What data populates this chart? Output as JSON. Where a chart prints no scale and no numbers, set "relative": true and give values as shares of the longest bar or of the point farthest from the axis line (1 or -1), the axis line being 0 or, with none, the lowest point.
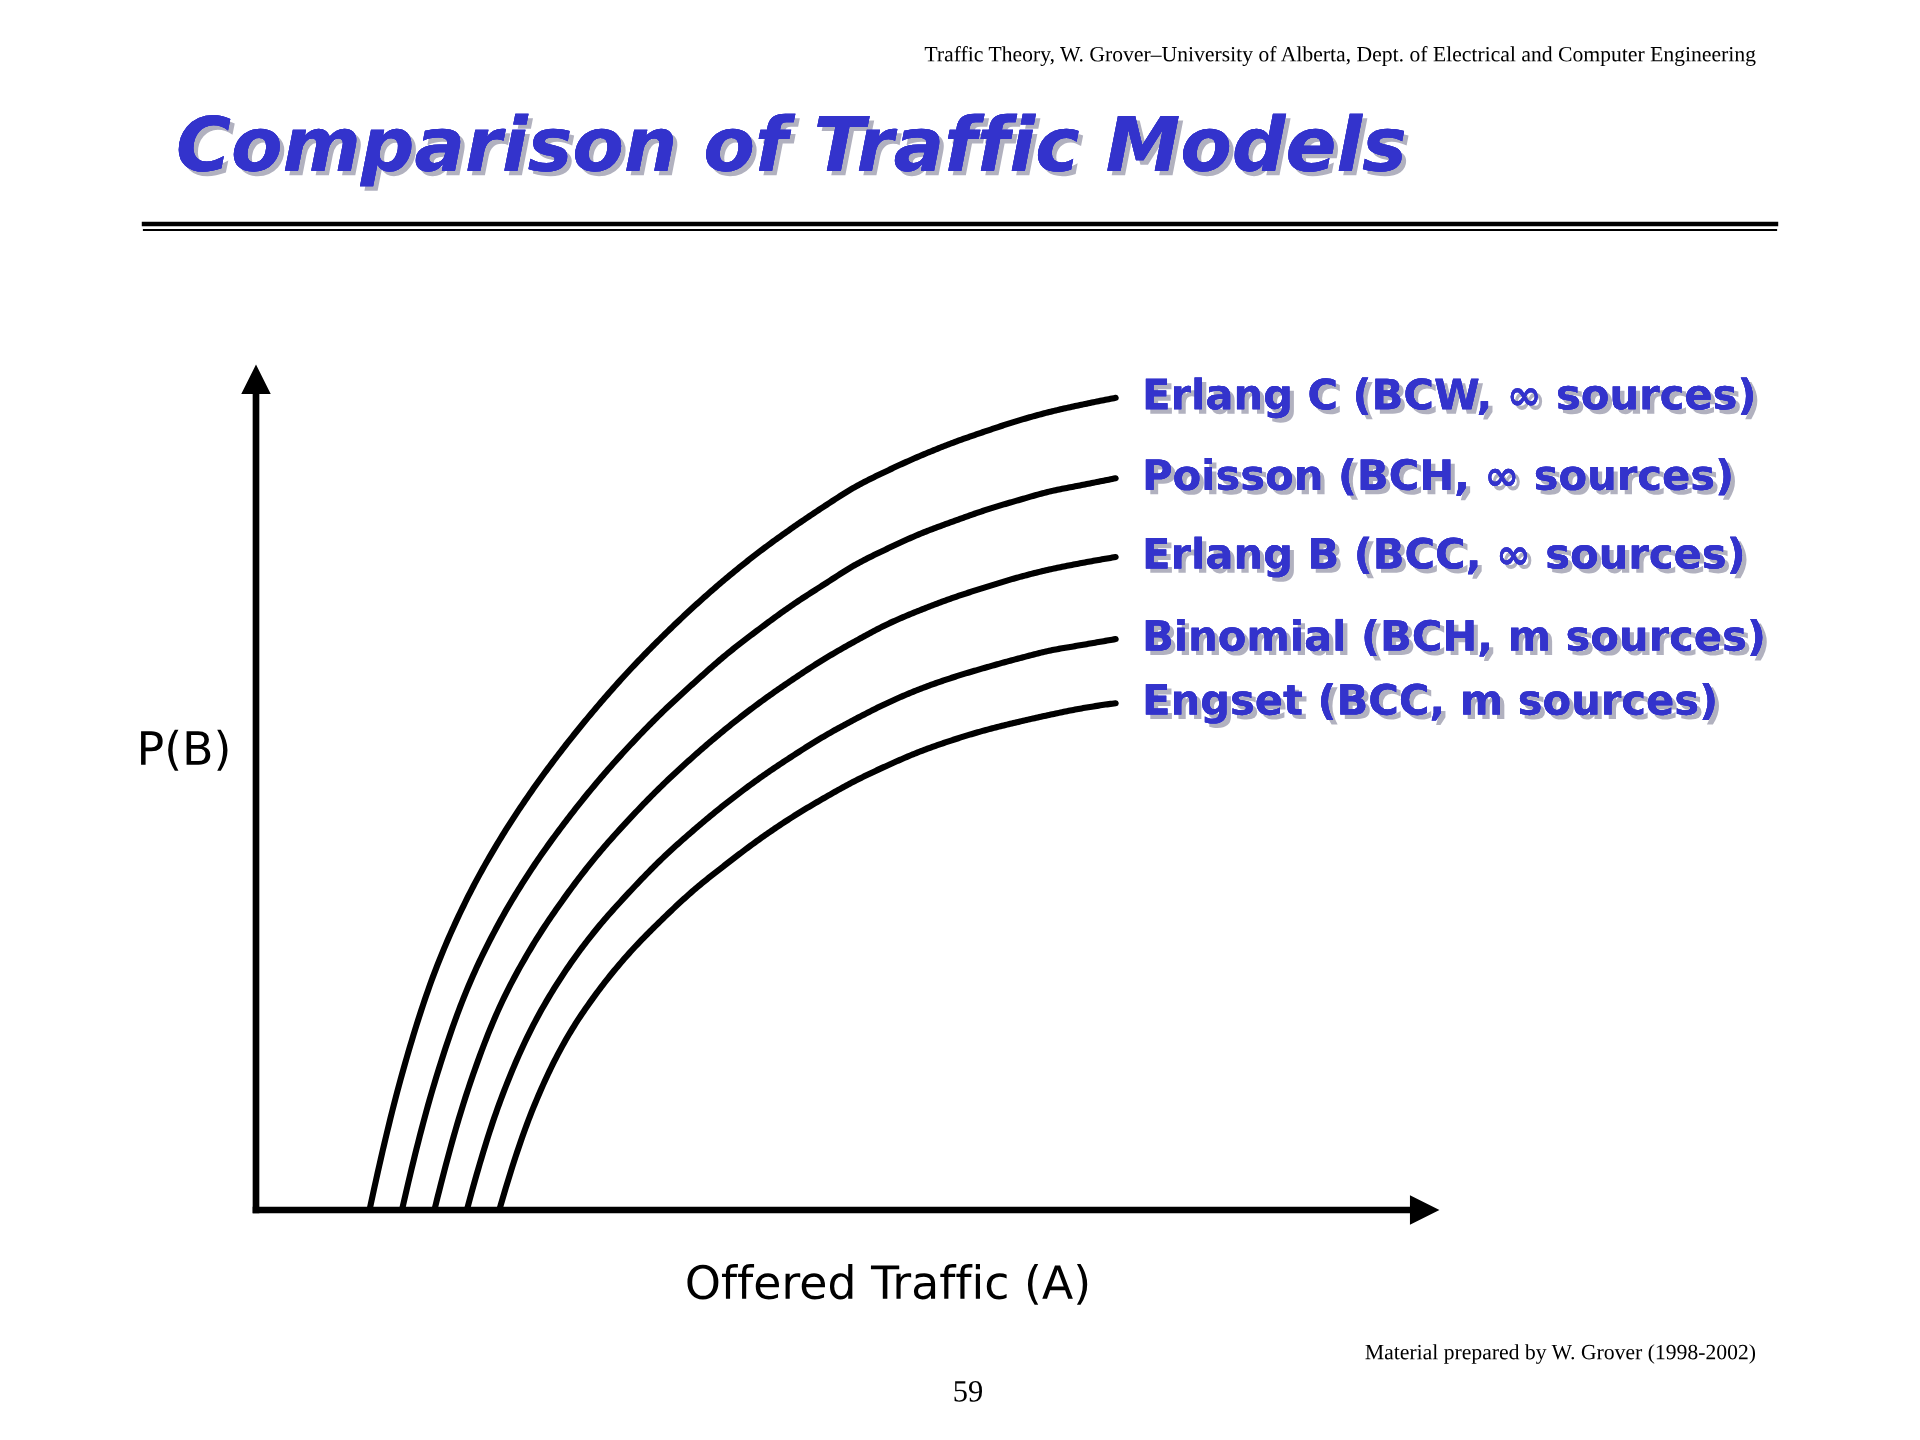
{
  "chart_data": {
    "type": "line",
    "relative": true,
    "title": "Comparison of Traffic Models",
    "xlabel": "Offered Traffic (A)",
    "ylabel": "P(B)",
    "categories": [
      null,
      null,
      null,
      null,
      null,
      null,
      null,
      null,
      null,
      null,
      null,
      null,
      null,
      null,
      null,
      null,
      null,
      null,
      null,
      null,
      null,
      null,
      null,
      null,
      null,
      null,
      null,
      null,
      null,
      null,
      null,
      null,
      null,
      null,
      null,
      null
    ],
    "series": [
      {
        "name": "Erlang C (BCW, ∞ sources)",
        "color": "#000000",
        "values": [
          null,
          null,
          null,
          0,
          0.167,
          0.292,
          0.383,
          0.455,
          0.516,
          0.57,
          0.619,
          0.664,
          0.705,
          0.743,
          0.778,
          0.81,
          0.839,
          0.866,
          0.891,
          0.911,
          0.929,
          0.945,
          0.959,
          0.972,
          0.983,
          0.992,
          1.0,
          null,
          null,
          null,
          null,
          null,
          null,
          null,
          null,
          null
        ]
      },
      {
        "name": "Poisson (BCH, ∞ sources)",
        "color": "#000000",
        "values": [
          null,
          null,
          null,
          null,
          0,
          0.156,
          0.271,
          0.354,
          0.42,
          0.476,
          0.526,
          0.571,
          0.612,
          0.649,
          0.684,
          0.715,
          0.744,
          0.77,
          0.795,
          0.815,
          0.833,
          0.848,
          0.862,
          0.874,
          0.885,
          0.893,
          0.901,
          null,
          null,
          null,
          null,
          null,
          null,
          null,
          null,
          null
        ]
      },
      {
        "name": "Erlang B (BCC, ∞ sources)",
        "color": "#000000",
        "values": [
          null,
          null,
          null,
          null,
          null,
          0,
          0.144,
          0.249,
          0.324,
          0.384,
          0.436,
          0.481,
          0.522,
          0.559,
          0.593,
          0.624,
          0.652,
          0.678,
          0.701,
          0.722,
          0.739,
          0.754,
          0.767,
          0.779,
          0.789,
          0.797,
          0.804,
          null,
          null,
          null,
          null,
          null,
          null,
          null,
          null,
          null
        ]
      },
      {
        "name": "Binomial (BCH, m sources)",
        "color": "#000000",
        "values": [
          null,
          null,
          null,
          null,
          null,
          null,
          0,
          0.131,
          0.224,
          0.292,
          0.346,
          0.391,
          0.432,
          0.468,
          0.501,
          0.531,
          0.558,
          0.583,
          0.605,
          0.625,
          0.642,
          0.656,
          0.668,
          0.679,
          0.689,
          0.696,
          0.703,
          null,
          null,
          null,
          null,
          null,
          null,
          null,
          null,
          null
        ]
      },
      {
        "name": "Engset (BCC, m sources)",
        "color": "#000000",
        "values": [
          null,
          null,
          null,
          null,
          null,
          null,
          null,
          0,
          0.121,
          0.206,
          0.267,
          0.316,
          0.357,
          0.394,
          0.426,
          0.456,
          0.483,
          0.507,
          0.529,
          0.548,
          0.565,
          0.579,
          0.591,
          0.601,
          0.61,
          0.618,
          0.624,
          null,
          null,
          null,
          null,
          null,
          null,
          null,
          null,
          null
        ]
      }
    ],
    "annotations": [
      "Traffic Theory, W. Grover–University of Alberta, Dept. of Electrical and Computer Engineering",
      "Material prepared by W. Grover (1998-2002)",
      "59"
    ]
  }
}
